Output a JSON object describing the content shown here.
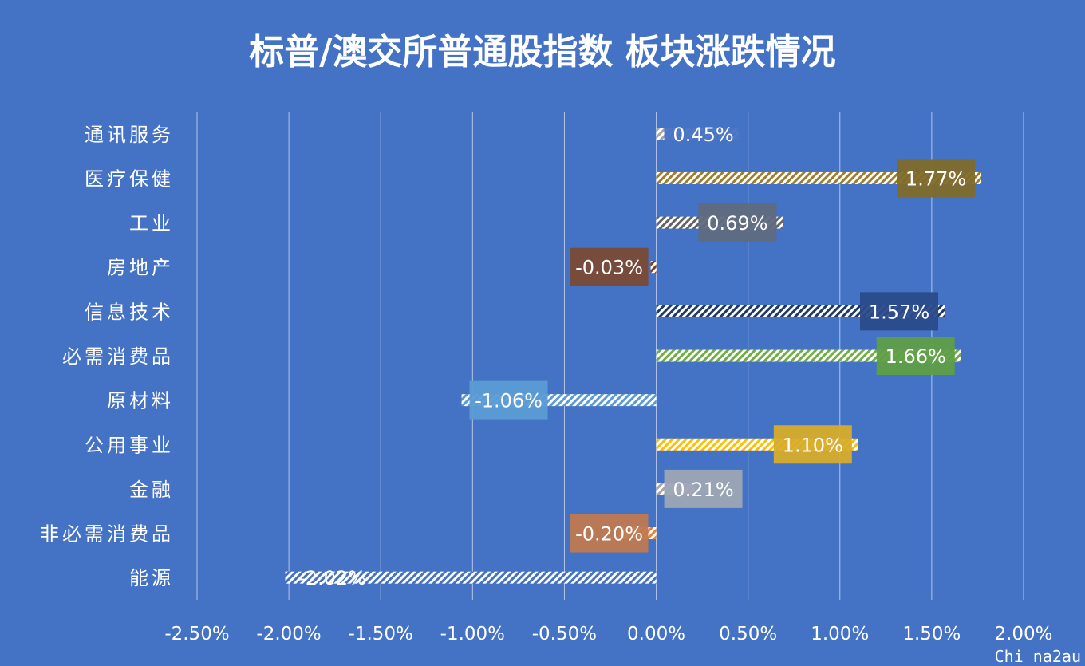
{
  "chart_data": {
    "type": "bar",
    "orientation": "horizontal",
    "title": "标普/澳交所普通股指数 板块涨跌情况",
    "categories": [
      "通讯服务",
      "医疗保健",
      "工业",
      "房地产",
      "信息技术",
      "必需消费品",
      "原材料",
      "公用事业",
      "金融",
      "非必需消费品",
      "能源"
    ],
    "values": [
      0.45,
      1.77,
      0.69,
      -0.03,
      1.57,
      1.66,
      -1.06,
      1.1,
      0.21,
      -0.2,
      -2.02
    ],
    "value_labels": [
      "0.45%",
      "1.77%",
      "0.69%",
      "-0.03%",
      "1.57%",
      "1.66%",
      "-1.06%",
      "1.10%",
      "0.21%",
      "-0.20%",
      "-2.02%"
    ],
    "bar_colors": [
      "#A5A5A5",
      "#9E7E2E",
      "#636363",
      "#843C0C",
      "#1F3864",
      "#70AD47",
      "#5B9BD5",
      "#FFC000",
      "#A5A5A5",
      "#ED7D31",
      "#4472C4"
    ],
    "label_box_colors": [
      "#4472C4",
      "#7F6A2A",
      "#5F6A80",
      "#7B4A36",
      "#2A4A8A",
      "#5E9E46",
      "#5B9BD5",
      "#D8AC2A",
      "#9DA5B5",
      "#C07850",
      ""
    ],
    "xlim": [
      -2.5,
      2.0
    ],
    "xticks": [
      "-2.50%",
      "-2.00%",
      "-1.50%",
      "-1.00%",
      "-0.50%",
      "0.00%",
      "0.50%",
      "1.00%",
      "1.50%",
      "2.00%"
    ],
    "xtick_values": [
      -2.5,
      -2.0,
      -1.5,
      -1.0,
      -0.5,
      0.0,
      0.5,
      1.0,
      1.5,
      2.0
    ],
    "xlabel": "",
    "ylabel": "",
    "grid": "vertical",
    "legend": "none"
  },
  "watermark": "Chi na2au"
}
